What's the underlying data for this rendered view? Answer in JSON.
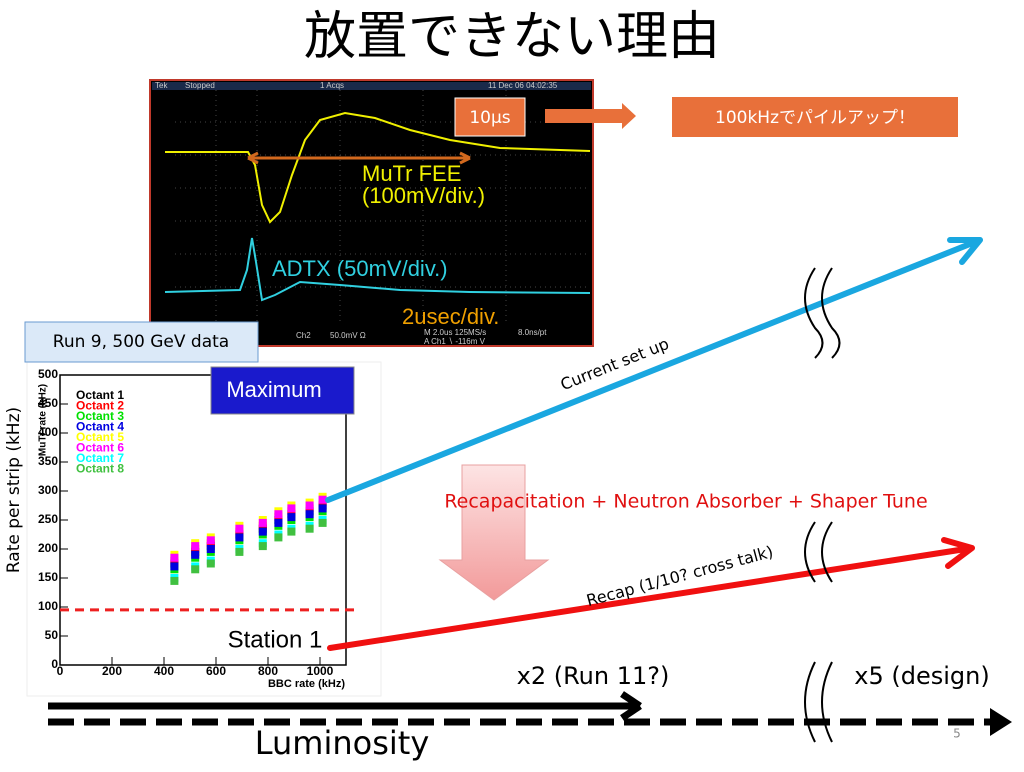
{
  "title": "放置できない理由",
  "scope": {
    "header": [
      "Tek",
      "Stopped",
      "1 Acqs",
      "11 Dec 06 04:02:35"
    ],
    "fee": [
      "MuTr FEE",
      "(100mV/div.)"
    ],
    "adtx": "ADTX (50mV/div.)",
    "timebase": "2usec/div.",
    "footer": [
      "Ch2",
      "50.0mV Ω",
      "M 2.0us 125MS/s",
      "8.0ns/pt",
      "A Ch1 ∖ -116m V"
    ]
  },
  "callouts": {
    "pulse": "10μs",
    "pileup": "100kHzでパイルアップ！",
    "run": "Run 9, 500 GeV data"
  },
  "plot": {
    "maximum": "Maximum",
    "station": "Station 1",
    "outer_y_label": "Rate per strip (kHz)",
    "y_title": "MuTr rate (kHz)",
    "x_title": "BBC rate (kHz)",
    "xlim": [
      0,
      1100
    ],
    "ylim": [
      0,
      500
    ],
    "xticks": [
      0,
      200,
      400,
      600,
      800,
      1000
    ],
    "yticks": [
      0,
      50,
      100,
      150,
      200,
      250,
      300,
      350,
      400,
      450,
      500
    ],
    "threshold": 95,
    "x": [
      440,
      520,
      580,
      690,
      780,
      840,
      890,
      960,
      1010
    ],
    "series": [
      {
        "name": "Octant 1",
        "color": "#000000",
        "values": [
          175,
          195,
          205,
          225,
          235,
          250,
          260,
          265,
          275
        ]
      },
      {
        "name": "Octant 2",
        "color": "#ff0000",
        "values": [
          180,
          200,
          210,
          230,
          240,
          255,
          265,
          270,
          280
        ]
      },
      {
        "name": "Octant 3",
        "color": "#00e000",
        "values": [
          165,
          185,
          195,
          215,
          225,
          240,
          250,
          255,
          265
        ]
      },
      {
        "name": "Octant 4",
        "color": "#0000e0",
        "values": [
          170,
          190,
          200,
          220,
          230,
          245,
          255,
          260,
          270
        ]
      },
      {
        "name": "Octant 5",
        "color": "#ffff00",
        "values": [
          190,
          210,
          220,
          240,
          250,
          265,
          275,
          280,
          290
        ]
      },
      {
        "name": "Octant 6",
        "color": "#ff00ff",
        "values": [
          185,
          205,
          215,
          235,
          245,
          260,
          270,
          275,
          285
        ]
      },
      {
        "name": "Octant 7",
        "color": "#00ffff",
        "values": [
          150,
          170,
          180,
          200,
          210,
          225,
          235,
          240,
          250
        ]
      },
      {
        "name": "Octant 8",
        "color": "#40c040",
        "values": [
          145,
          165,
          175,
          195,
          205,
          220,
          230,
          235,
          245
        ]
      }
    ]
  },
  "arrows": {
    "current": "Current set up",
    "fix": "Recapacitation + Neutron Absorber + Shaper Tune",
    "recap": "Recap (1/10? cross talk)"
  },
  "luminosity": {
    "run11": "x2 (Run 11?)",
    "design": "x5 (design)",
    "label": "Luminosity"
  },
  "page_number": "5"
}
